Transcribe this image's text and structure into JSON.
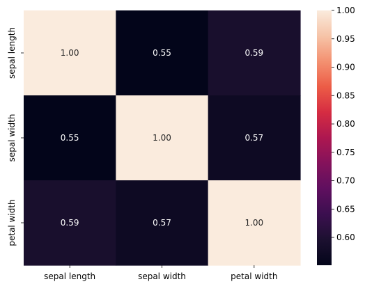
{
  "chart_data": {
    "type": "heatmap",
    "title": "",
    "xlabel": "",
    "ylabel": "",
    "x_categories": [
      "sepal length",
      "sepal width",
      "petal width"
    ],
    "y_categories": [
      "sepal length",
      "sepal width",
      "petal width"
    ],
    "values": [
      [
        1.0,
        0.55,
        0.59
      ],
      [
        0.55,
        1.0,
        0.57
      ],
      [
        0.59,
        0.57,
        1.0
      ]
    ],
    "value_format": "2f",
    "colormap": "rocket",
    "colorbar": {
      "range": [
        0.551,
        1.0
      ],
      "ticks": [
        0.6,
        0.65,
        0.7,
        0.75,
        0.8,
        0.85,
        0.9,
        0.95,
        1.0
      ],
      "tick_labels": [
        "0.60",
        "0.65",
        "0.70",
        "0.75",
        "0.80",
        "0.85",
        "0.90",
        "0.95",
        "1.00"
      ]
    },
    "colors": {
      "low": "#03051a",
      "high": "#faebdd",
      "text_on_dark": "#ffffff",
      "text_on_light": "#262626"
    },
    "grid": false,
    "legend": "colorbar-right"
  }
}
